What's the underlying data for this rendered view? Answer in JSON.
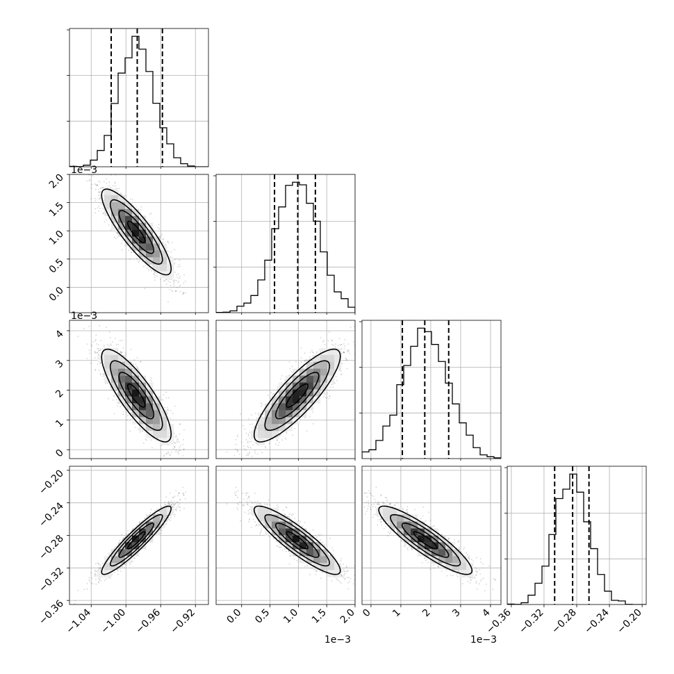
{
  "chart_data": {
    "type": "corner",
    "grid": true,
    "parameters": [
      {
        "range": [
          -1.065,
          -0.905
        ],
        "ticks": [
          -1.04,
          -1.0,
          -0.96,
          -0.92
        ],
        "tick_labels": [
          "−1.04",
          "−1.00",
          "−0.96",
          "−0.92"
        ],
        "offset_label": "",
        "quantiles": [
          -1.017,
          -0.987,
          -0.958
        ],
        "mean": -0.988,
        "sd": 0.02
      },
      {
        "range": [
          -0.45,
          2.0
        ],
        "ticks": [
          0.0,
          0.5,
          1.0,
          1.5,
          2.0
        ],
        "tick_labels": [
          "0.0",
          "0.5",
          "1.0",
          "1.5",
          "2.0"
        ],
        "offset_label": "1e−3",
        "quantiles": [
          0.58,
          0.99,
          1.3
        ],
        "mean": 0.98,
        "sd": 0.38
      },
      {
        "range": [
          -0.3,
          4.35
        ],
        "ticks": [
          0,
          1,
          2,
          3,
          4
        ],
        "tick_labels": [
          "0",
          "1",
          "2",
          "3",
          "4"
        ],
        "offset_label": "1e−3",
        "quantiles": [
          1.05,
          1.8,
          2.6
        ],
        "mean": 1.82,
        "sd": 0.78
      },
      {
        "range": [
          -0.365,
          -0.195
        ],
        "ticks": [
          -0.36,
          -0.32,
          -0.28,
          -0.24,
          -0.2
        ],
        "tick_labels": [
          "−0.36",
          "−0.32",
          "−0.28",
          "−0.24",
          "−0.20"
        ],
        "offset_label": "",
        "quantiles": [
          -0.307,
          -0.285,
          -0.265
        ],
        "mean": -0.286,
        "sd": 0.021
      }
    ],
    "correlations": {
      "1-0": -0.86,
      "2-0": -0.83,
      "2-1": 0.85,
      "3-0": 0.93,
      "3-1": -0.89,
      "3-2": -0.89
    }
  }
}
